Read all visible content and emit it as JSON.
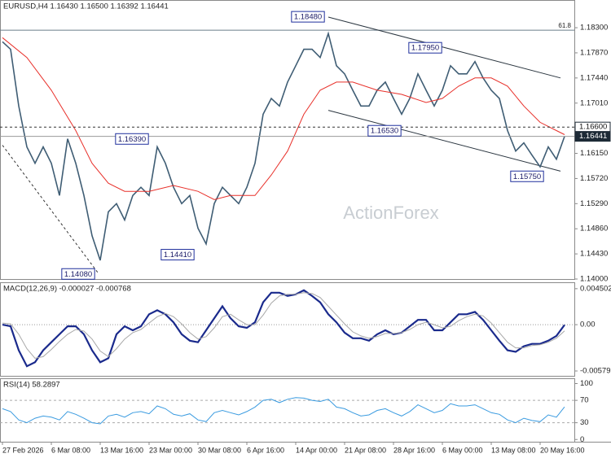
{
  "chart_data": [
    {
      "type": "line",
      "title": "EURUSD,H4  1.16430 1.16500 1.16392 1.16441",
      "watermark": "ActionForex",
      "x": [
        0,
        1,
        2,
        3,
        4,
        5,
        6,
        7,
        8,
        9,
        10,
        11,
        12,
        13,
        14,
        15,
        16,
        17,
        18,
        19,
        20,
        21,
        22,
        23,
        24,
        25,
        26,
        27,
        28,
        29,
        30,
        31,
        32,
        33,
        34,
        35,
        36,
        37,
        38,
        39,
        40,
        41,
        42,
        43,
        44,
        45,
        46,
        47,
        48,
        49,
        50,
        51,
        52,
        53,
        54,
        55,
        56,
        57,
        58,
        59,
        60,
        61,
        62,
        63,
        64,
        65,
        66,
        67,
        68,
        69
      ],
      "xlim": [
        -0.3,
        70.2
      ],
      "ylim": [
        1.14,
        1.1876
      ],
      "yticks": [
        {
          "value": 1.183,
          "label": "1.18300"
        },
        {
          "value": 1.1787,
          "label": "1.17870"
        },
        {
          "value": 1.1744,
          "label": "1.17440"
        },
        {
          "value": 1.1701,
          "label": "1.17010"
        },
        {
          "value": 1.1615,
          "label": "1.16150"
        },
        {
          "value": 1.1572,
          "label": "1.15720"
        },
        {
          "value": 1.1529,
          "label": "1.15290"
        },
        {
          "value": 1.1486,
          "label": "1.14860"
        },
        {
          "value": 1.1443,
          "label": "1.14430"
        },
        {
          "value": 1.14,
          "label": "1.14000"
        }
      ],
      "series": [
        {
          "color": "#3f5d74",
          "values": [
            1.1806,
            1.1793,
            1.1696,
            1.1626,
            1.1598,
            1.1626,
            1.1598,
            1.1543,
            1.164,
            1.1598,
            1.1543,
            1.1474,
            1.1432,
            1.1515,
            1.1529,
            1.1501,
            1.1543,
            1.1557,
            1.1543,
            1.1626,
            1.1598,
            1.1557,
            1.1529,
            1.1543,
            1.1487,
            1.146,
            1.1529,
            1.1557,
            1.1543,
            1.1529,
            1.1557,
            1.1598,
            1.1682,
            1.1709,
            1.1696,
            1.1737,
            1.1765,
            1.1793,
            1.1793,
            1.1779,
            1.182,
            1.1765,
            1.1751,
            1.1723,
            1.1696,
            1.1696,
            1.1723,
            1.1737,
            1.1709,
            1.1682,
            1.1709,
            1.1751,
            1.1723,
            1.1696,
            1.1723,
            1.1765,
            1.1751,
            1.1751,
            1.1772,
            1.1744,
            1.1723,
            1.1709,
            1.1654,
            1.1619,
            1.1633,
            1.1612,
            1.1592,
            1.1626,
            1.1605,
            1.16441
          ]
        },
        {
          "color": "#e8302a",
          "x": [
            0,
            3,
            6,
            9,
            11,
            13,
            15,
            18,
            21,
            24,
            26,
            28,
            31,
            33,
            35,
            37,
            39,
            41,
            43,
            46,
            49,
            52,
            54,
            56,
            58,
            60,
            62,
            64,
            66,
            68,
            69
          ],
          "values": [
            1.1813,
            1.1779,
            1.1723,
            1.1654,
            1.1598,
            1.1564,
            1.155,
            1.155,
            1.156,
            1.155,
            1.1536,
            1.1543,
            1.1543,
            1.1578,
            1.1619,
            1.1682,
            1.1723,
            1.1737,
            1.1737,
            1.1723,
            1.1716,
            1.1702,
            1.1709,
            1.173,
            1.1744,
            1.1744,
            1.173,
            1.1696,
            1.1668,
            1.1654,
            1.1647
          ]
        }
      ],
      "levels": [
        {
          "value": 1.18258,
          "label": "61.8",
          "color": "#6b7d8a"
        }
      ],
      "price_tags": [
        {
          "value": 1.166,
          "label": "1.16600",
          "style": "dashed"
        },
        {
          "value": 1.16441,
          "label": "1.16441",
          "style": "solid"
        }
      ],
      "trendlines": [
        {
          "x": [
            40,
            68.5
          ],
          "values": [
            1.18481,
            1.1744
          ],
          "dashed": false
        },
        {
          "x": [
            40,
            68.5
          ],
          "values": [
            1.16886,
            1.15845
          ],
          "dashed": false
        },
        {
          "x": [
            0,
            11.7
          ],
          "values": [
            1.16289,
            1.14112
          ],
          "dashed": true
        }
      ],
      "annotations": [
        {
          "x": 37.5,
          "value": 1.1848,
          "label": "1.18480"
        },
        {
          "x": 51.9,
          "value": 1.1795,
          "label": "1.17950"
        },
        {
          "x": 46.9,
          "value": 1.1653,
          "label": "1.16530"
        },
        {
          "x": 15.9,
          "value": 1.1639,
          "label": "1.16390"
        },
        {
          "x": 21.5,
          "value": 1.1441,
          "label": "1.14410"
        },
        {
          "x": 9.3,
          "value": 1.1408,
          "label": "1.14080"
        },
        {
          "x": 64.4,
          "value": 1.1575,
          "label": "1.15750"
        }
      ]
    },
    {
      "type": "line",
      "title": "MACD(12,26,9) -0.000027 -0.000768",
      "x": [
        0,
        1,
        2,
        3,
        4,
        5,
        6,
        7,
        8,
        9,
        10,
        11,
        12,
        13,
        14,
        15,
        16,
        17,
        18,
        19,
        20,
        21,
        22,
        23,
        24,
        25,
        26,
        27,
        28,
        29,
        30,
        31,
        32,
        33,
        34,
        35,
        36,
        37,
        38,
        39,
        40,
        41,
        42,
        43,
        44,
        45,
        46,
        47,
        48,
        49,
        50,
        51,
        52,
        53,
        54,
        55,
        56,
        57,
        58,
        59,
        60,
        61,
        62,
        63,
        64,
        65,
        66,
        67,
        68,
        69
      ],
      "xlim": [
        -0.3,
        70.2
      ],
      "ylim": [
        -0.0064,
        0.0052
      ],
      "yticks": [
        0.004502,
        {
          "value": 0,
          "label": "0.00"
        },
        -0.005791
      ],
      "zero_line": true,
      "series": [
        {
          "color": "#1a2a8c",
          "values": [
            0,
            -0.0002,
            -0.0032,
            -0.0052,
            -0.0047,
            -0.0032,
            -0.0022,
            -0.0012,
            -0.0002,
            -0.0002,
            -0.0012,
            -0.0032,
            -0.0047,
            -0.0042,
            -0.0012,
            -0.0002,
            -0.0007,
            -0.0002,
            0.0013,
            0.0018,
            0.0013,
            0.0003,
            -0.0012,
            -0.002,
            -0.0022,
            -0.0007,
            0.0008,
            0.0023,
            0.0008,
            -0.0002,
            -0.0004,
            0.0003,
            0.0028,
            0.004,
            0.004,
            0.0036,
            0.0038,
            0.0043,
            0.0036,
            0.0028,
            0.0013,
            0.0003,
            -0.001,
            -0.0017,
            -0.0017,
            -0.002,
            -0.0012,
            -0.0007,
            -0.0012,
            -0.001,
            -0.0002,
            0.0006,
            0.0006,
            -0.0007,
            -0.0007,
            0.0003,
            0.0013,
            0.0013,
            0.0016,
            0.0006,
            -0.0007,
            -0.002,
            -0.0032,
            -0.0034,
            -0.0027,
            -0.0024,
            -0.0024,
            -0.002,
            -0.0014,
            -2.7e-05
          ]
        },
        {
          "color": "#a8a8a8",
          "values": [
            0.0002,
            0.0001,
            -0.0012,
            -0.003,
            -0.0042,
            -0.004,
            -0.0031,
            -0.0021,
            -0.0012,
            -0.0006,
            -0.0008,
            -0.0018,
            -0.0033,
            -0.004,
            -0.003,
            -0.0018,
            -0.001,
            -0.0006,
            0.0002,
            0.001,
            0.0014,
            0.001,
            0.0001,
            -0.001,
            -0.0018,
            -0.0015,
            -0.0004,
            0.001,
            0.0013,
            0.0006,
            0,
            0,
            0.0012,
            0.0027,
            0.0036,
            0.0038,
            0.0038,
            0.004,
            0.0039,
            0.0034,
            0.0023,
            0.0012,
            0.0001,
            -0.0009,
            -0.0014,
            -0.0017,
            -0.0015,
            -0.0011,
            -0.0011,
            -0.001,
            -0.0006,
            0,
            0.0003,
            0,
            -0.0004,
            -0.0002,
            0.0005,
            0.001,
            0.0013,
            0.0011,
            0.0002,
            -0.001,
            -0.0022,
            -0.0029,
            -0.0029,
            -0.0026,
            -0.0025,
            -0.0022,
            -0.0017,
            -0.000768
          ]
        }
      ]
    },
    {
      "type": "line",
      "title": "RSI(14) 58.2897",
      "x": [
        0,
        1,
        2,
        3,
        4,
        5,
        6,
        7,
        8,
        9,
        10,
        11,
        12,
        13,
        14,
        15,
        16,
        17,
        18,
        19,
        20,
        21,
        22,
        23,
        24,
        25,
        26,
        27,
        28,
        29,
        30,
        31,
        32,
        33,
        34,
        35,
        36,
        37,
        38,
        39,
        40,
        41,
        42,
        43,
        44,
        45,
        46,
        47,
        48,
        49,
        50,
        51,
        52,
        53,
        54,
        55,
        56,
        57,
        58,
        59,
        60,
        61,
        62,
        63,
        64,
        65,
        66,
        67,
        68,
        69
      ],
      "xlim": [
        -0.3,
        70.2
      ],
      "ylim": [
        -4,
        108
      ],
      "yticks": [
        100,
        70,
        30,
        0
      ],
      "dashed_levels": [
        70,
        30
      ],
      "xticks": [
        {
          "value": 0,
          "label": "27 Feb 2026"
        },
        {
          "value": 6,
          "label": "6 Mar 08:00"
        },
        {
          "value": 12,
          "label": "13 Mar 16:00"
        },
        {
          "value": 18,
          "label": "23 Mar 00:00"
        },
        {
          "value": 24,
          "label": "30 Mar 08:00"
        },
        {
          "value": 30,
          "label": "6 Apr 16:00"
        },
        {
          "value": 36,
          "label": "14 Apr 00:00"
        },
        {
          "value": 42,
          "label": "21 Apr 08:00"
        },
        {
          "value": 48,
          "label": "28 Apr 16:00"
        },
        {
          "value": 54,
          "label": "6 May 00:00"
        },
        {
          "value": 60,
          "label": "13 May 08:00"
        },
        {
          "value": 66,
          "label": "20 May 16:00"
        }
      ],
      "series": [
        {
          "color": "#3a9be0",
          "values": [
            55,
            50,
            35,
            30,
            38,
            42,
            40,
            35,
            50,
            45,
            38,
            30,
            28,
            42,
            45,
            40,
            48,
            50,
            46,
            60,
            55,
            45,
            42,
            46,
            35,
            32,
            48,
            52,
            48,
            44,
            50,
            58,
            70,
            72,
            66,
            72,
            75,
            74,
            70,
            68,
            72,
            58,
            55,
            48,
            42,
            44,
            52,
            55,
            48,
            42,
            50,
            62,
            55,
            48,
            52,
            64,
            60,
            60,
            62,
            55,
            48,
            45,
            35,
            30,
            38,
            34,
            32,
            44,
            40,
            58.2897
          ]
        }
      ]
    }
  ]
}
